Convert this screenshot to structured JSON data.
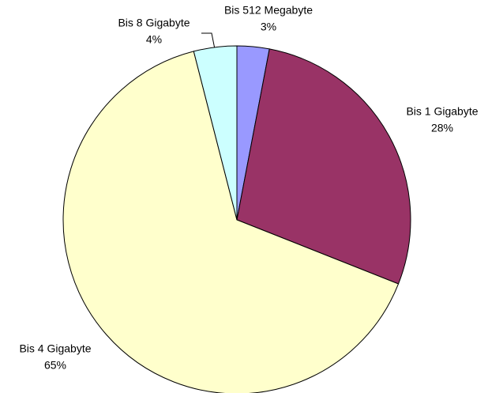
{
  "chart_data": {
    "type": "pie",
    "categories": [
      "Bis 512 Megabyte",
      "Bis 1 Gigabyte",
      "Bis 4 Gigabyte",
      "Bis 8 Gigabyte"
    ],
    "values": [
      3,
      28,
      65,
      4
    ],
    "value_labels": [
      "3%",
      "28%",
      "65%",
      "4%"
    ],
    "colors": [
      "#9999ff",
      "#993366",
      "#ffffcc",
      "#ccffff"
    ]
  }
}
